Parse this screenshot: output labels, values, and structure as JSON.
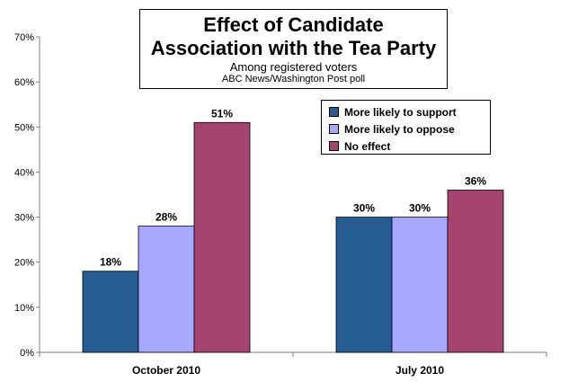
{
  "header": {
    "title_line1": "Effect of Candidate",
    "title_line2": "Association with the Tea Party",
    "subtitle": "Among registered voters",
    "source": "ABC News/Washington Post poll"
  },
  "legend": [
    {
      "label": "More likely to support",
      "color": "#255C91"
    },
    {
      "label": "More likely to oppose",
      "color": "#A7A8FF"
    },
    {
      "label": "No effect",
      "color": "#A5456F"
    }
  ],
  "chart_data": {
    "type": "bar",
    "categories": [
      "October 2010",
      "July 2010"
    ],
    "series": [
      {
        "name": "More likely to support",
        "values": [
          18,
          30
        ],
        "color": "#255C91"
      },
      {
        "name": "More likely to oppose",
        "values": [
          28,
          30
        ],
        "color": "#A7A8FF"
      },
      {
        "name": "No effect",
        "values": [
          51,
          36
        ],
        "color": "#A5456F"
      }
    ],
    "data_labels": [
      [
        "18%",
        "28%",
        "51%"
      ],
      [
        "30%",
        "30%",
        "36%"
      ]
    ],
    "y_ticks": [
      "0%",
      "10%",
      "20%",
      "30%",
      "40%",
      "50%",
      "60%",
      "70%"
    ],
    "ylim": [
      0,
      70
    ],
    "title": "Effect of Candidate Association with the Tea Party",
    "xlabel": "",
    "ylabel": "",
    "grid": false,
    "legend_position": "top-right"
  }
}
